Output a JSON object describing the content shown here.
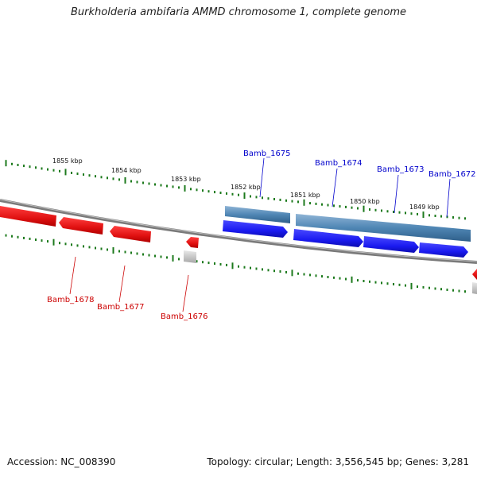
{
  "title": "Burkholderia ambifaria AMMD chromosome 1, complete genome",
  "footer": {
    "accession": "Accession: NC_008390",
    "topology": "Topology: circular; Length: 3,556,545 bp; Genes: 3,281"
  },
  "scale_labels": [
    "1855 kbp",
    "1854 kbp",
    "1853 kbp",
    "1852 kbp",
    "1851 kbp",
    "1850 kbp",
    "1849 kbp"
  ],
  "genes": {
    "forward": [
      "Bamb_1675",
      "Bamb_1674",
      "Bamb_1673",
      "Bamb_1672"
    ],
    "reverse": [
      "Bamb_1678",
      "Bamb_1677",
      "Bamb_1676"
    ]
  },
  "colors": {
    "forward_cds": "#1a1af0",
    "forward_gene": "#4f86b4",
    "reverse_cds": "#e01010",
    "backbone": "#7a7a7a",
    "ticks": "#1c7a1c",
    "forward_label": "#0000cc",
    "reverse_label": "#cc0000"
  }
}
